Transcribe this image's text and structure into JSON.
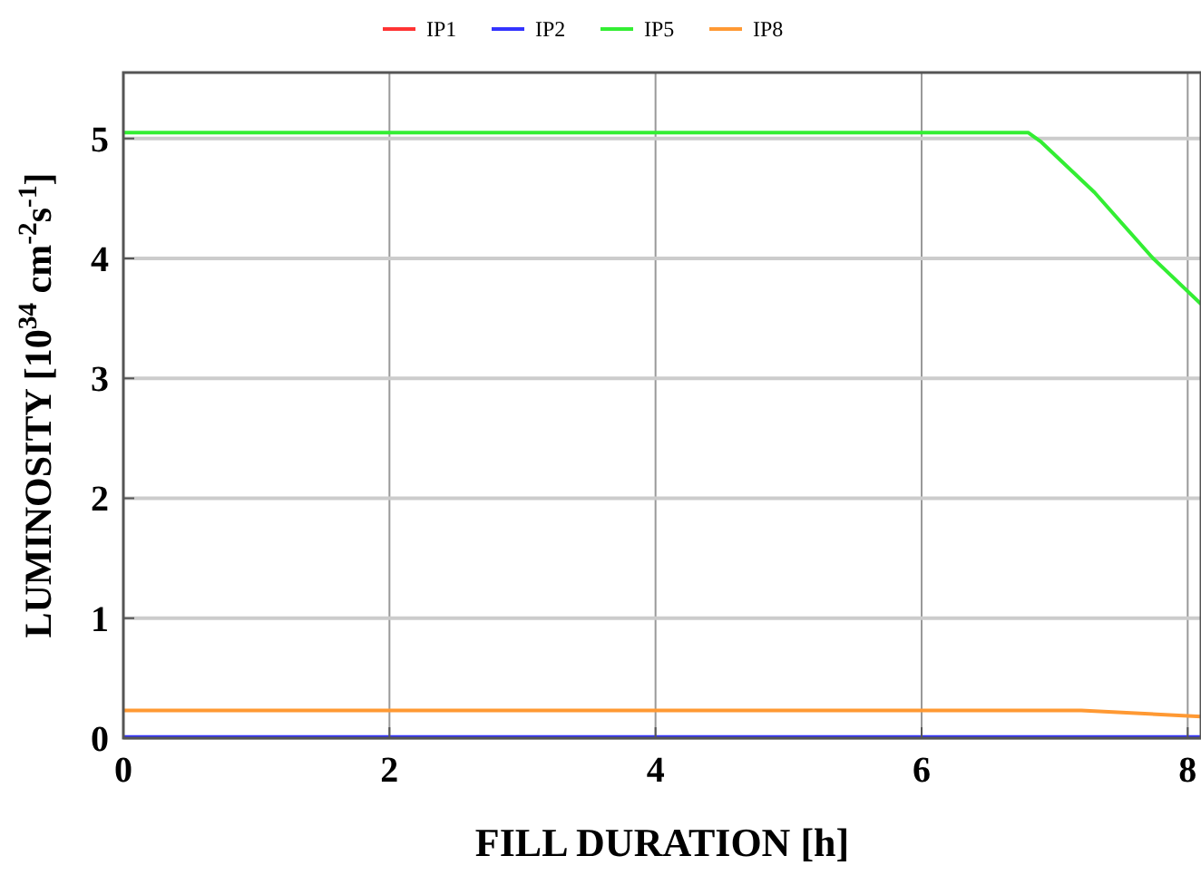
{
  "chart_data": {
    "type": "line",
    "xlabel": "FILL DURATION [h]",
    "ylabel": "LUMINOSITY [10$^{34}$ cm$^{-2}$s$^{-1}$]",
    "xlim": [
      0,
      8.1
    ],
    "ylim": [
      0,
      5.55
    ],
    "xticks": [
      0,
      2,
      4,
      6,
      8
    ],
    "yticks": [
      0,
      1,
      2,
      3,
      4,
      5
    ],
    "grid": true,
    "legend": "top",
    "line_style": "solid",
    "marker": "none",
    "series": [
      {
        "name": "IP1",
        "color": "#ff3333"
      },
      {
        "name": "IP2",
        "color": "#3333ff",
        "x": [
          0,
          8.1
        ],
        "values": [
          0.01,
          0.01
        ]
      },
      {
        "name": "IP5",
        "color": "#33ee33",
        "x": [
          0,
          6.8,
          6.9,
          7.3,
          7.74,
          8.1
        ],
        "values": [
          5.05,
          5.05,
          4.97,
          4.55,
          4.0,
          3.62
        ]
      },
      {
        "name": "IP8",
        "color": "#ff9933",
        "x": [
          0,
          7.2,
          8.1
        ],
        "values": [
          0.23,
          0.23,
          0.18
        ]
      }
    ]
  }
}
